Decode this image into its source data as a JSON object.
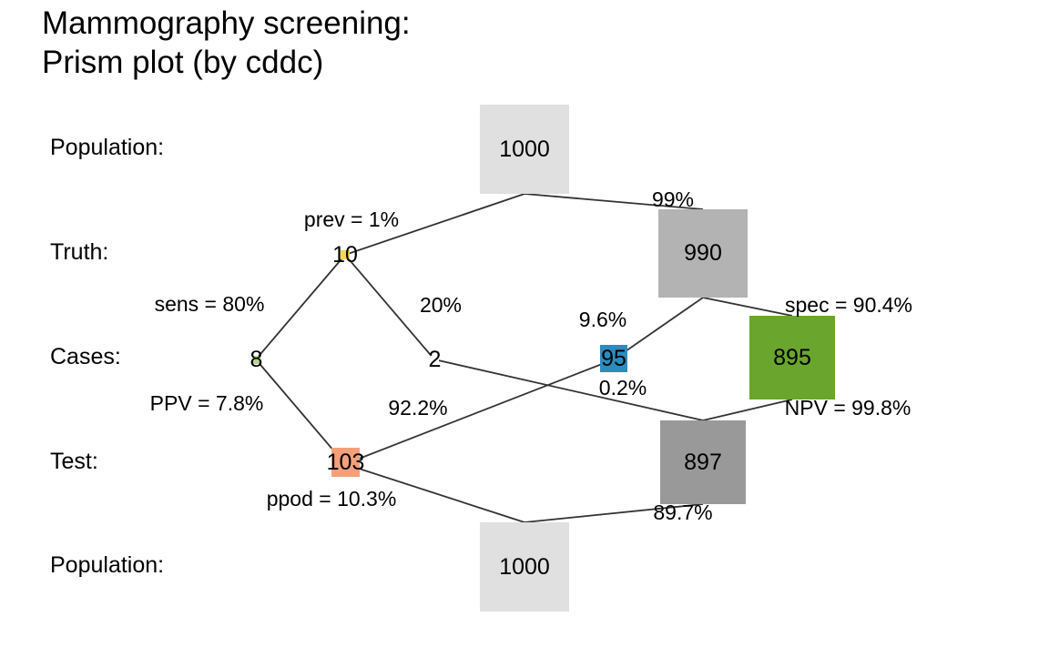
{
  "title": {
    "line1": "Mammography screening:",
    "line2": "Prism plot (by cddc)"
  },
  "rows": {
    "population_top": "Population:",
    "truth": "Truth:",
    "cases": "Cases:",
    "test": "Test:",
    "population_bottom": "Population:"
  },
  "nodes": {
    "population_top": {
      "value": "1000",
      "color": "#e0e0e0"
    },
    "truth_true": {
      "value": "10",
      "color": "#f7d84a"
    },
    "truth_false": {
      "value": "990",
      "color": "#b3b3b3"
    },
    "cases_hi": {
      "value": "8",
      "color": "#b8d68a"
    },
    "cases_mi": {
      "value": "2",
      "color": "#ffffff"
    },
    "cases_fa": {
      "value": "95",
      "color": "#2b8cbe"
    },
    "cases_cr": {
      "value": "895",
      "color": "#6aa52e"
    },
    "test_positive": {
      "value": "103",
      "color": "#f4a07a"
    },
    "test_negative": {
      "value": "897",
      "color": "#999999"
    },
    "population_bottom": {
      "value": "1000",
      "color": "#e0e0e0"
    }
  },
  "edge_labels": {
    "prev": "prev = 1%",
    "not_prev": "99%",
    "sens": "sens = 80%",
    "miss_rate": "20%",
    "fa_rate": "9.6%",
    "spec": "spec = 90.4%",
    "ppv": "PPV = 7.8%",
    "fdr": "92.2%",
    "for": "0.2%",
    "npv": "NPV = 99.8%",
    "ppod": "ppod = 10.3%",
    "not_ppod": "89.7%"
  }
}
